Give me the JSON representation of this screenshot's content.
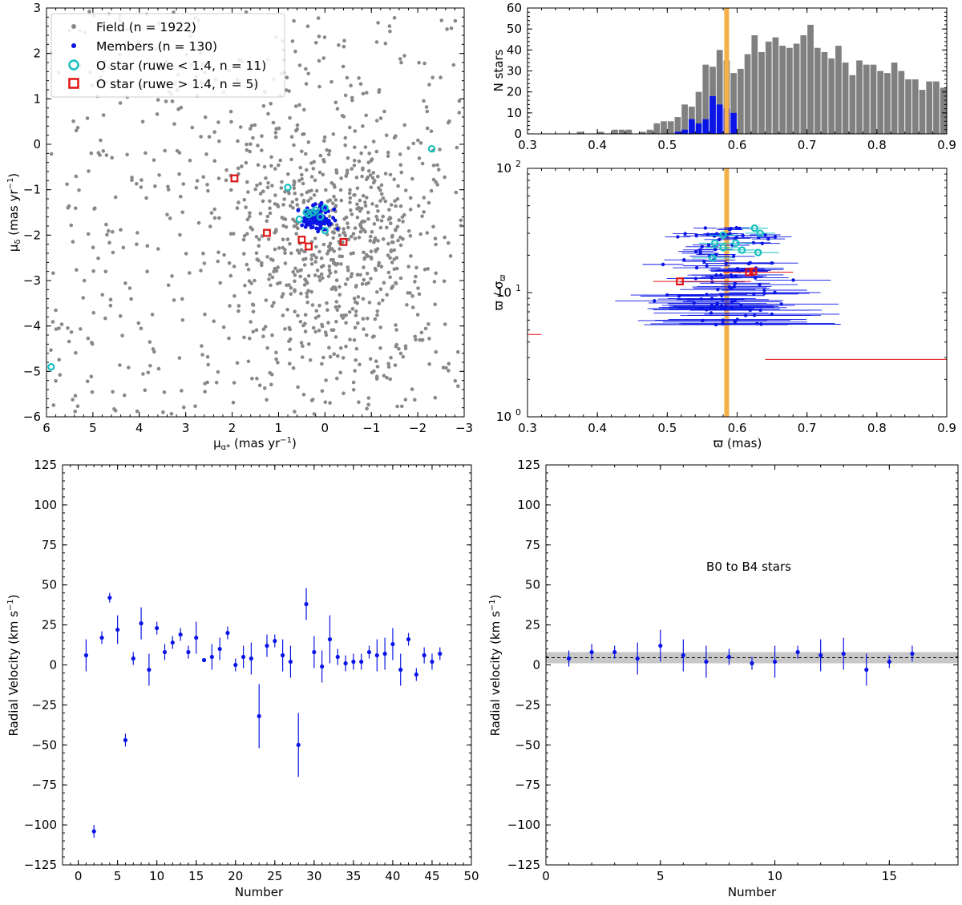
{
  "chart_data": [
    {
      "id": "pm",
      "type": "scatter",
      "xlabel_main": "μ",
      "xlabel_sub": "α*",
      "xlabel_rest": " (mas yr",
      "xlabel_exp": "−1",
      "xlabel_close": ")",
      "ylabel_main": "μ",
      "ylabel_sub": "δ",
      "ylabel_rest": " (mas yr",
      "ylabel_exp": "−1",
      "ylabel_close": ")",
      "xlim": [
        6,
        -3
      ],
      "ylim": [
        -6,
        3
      ],
      "xticks": [
        "6",
        "5",
        "4",
        "3",
        "2",
        "1",
        "0",
        "−1",
        "−2",
        "−3"
      ],
      "yticks": [
        "−6",
        "−5",
        "−4",
        "−3",
        "−2",
        "−1",
        "0",
        "1",
        "2",
        "3"
      ],
      "legend": [
        "Field (n = 1922)",
        "Members (n = 130)",
        "O star (ruwe < 1.4, n = 11)",
        "O star (ruwe > 1.4, n = 5)"
      ],
      "legend_position": "top-left",
      "o_good": [
        [
          -2.3,
          -0.1
        ],
        [
          0.8,
          -0.95
        ],
        [
          5.9,
          -4.9
        ],
        [
          0.55,
          -1.65
        ],
        [
          0.35,
          -1.55
        ],
        [
          0.25,
          -1.5
        ],
        [
          0.1,
          -1.6
        ],
        [
          0.0,
          -1.4
        ],
        [
          0.2,
          -1.45
        ],
        [
          0.0,
          -1.9
        ],
        [
          0.4,
          -1.5
        ]
      ],
      "o_bad": [
        [
          1.95,
          -0.75
        ],
        [
          1.25,
          -1.95
        ],
        [
          0.5,
          -2.1
        ],
        [
          0.35,
          -2.25
        ],
        [
          -0.4,
          -2.15
        ]
      ],
      "colors": {
        "field": "#888888",
        "members": "#0a14e6",
        "o_good": "#17bfbf",
        "o_bad": "#e01414"
      }
    },
    {
      "id": "hist",
      "type": "bar",
      "ylabel": "N stars",
      "xlim": [
        0.3,
        0.9
      ],
      "ylim": [
        0,
        60
      ],
      "xticks": [
        "0.3",
        "0.4",
        "0.5",
        "0.6",
        "0.7",
        "0.8",
        "0.9"
      ],
      "yticks": [
        "0",
        "10",
        "20",
        "30",
        "40",
        "50",
        "60"
      ],
      "bin_start": 0.3,
      "bin_width": 0.01,
      "field_counts": [
        0,
        0,
        0,
        0,
        0,
        0,
        0,
        1,
        0,
        0,
        1,
        0,
        2,
        2,
        2,
        0,
        1,
        2,
        5,
        6,
        6,
        8,
        14,
        13,
        20,
        33,
        32,
        40,
        35,
        29,
        31,
        38,
        47,
        39,
        44,
        46,
        42,
        41,
        43,
        47,
        52,
        41,
        39,
        36,
        42,
        34,
        28,
        35,
        33,
        33,
        30,
        29,
        34,
        30,
        26,
        26,
        21,
        25,
        25,
        22
      ],
      "member_counts": [
        0,
        0,
        0,
        0,
        0,
        0,
        0,
        0,
        0,
        0,
        0,
        0,
        0,
        0,
        0,
        0,
        0,
        0,
        0,
        0,
        0,
        1,
        2,
        7,
        5,
        7,
        18,
        14,
        12,
        10,
        0,
        0,
        0,
        0,
        0,
        0,
        0,
        0,
        0,
        0,
        0,
        0,
        0,
        0,
        0,
        0,
        0,
        0,
        0,
        0,
        0,
        0,
        0,
        0,
        0,
        0,
        0,
        0,
        0,
        0
      ],
      "vline": 0.585,
      "colors": {
        "field": "#808080",
        "members": "#0a14e6",
        "vline": "#f5b04a"
      }
    },
    {
      "id": "plxsnr",
      "type": "scatter",
      "xlabel": "ϖ (mas)",
      "ylabel": "ϖ / σ",
      "ylabel_sub": "ϖ",
      "xlim": [
        0.3,
        0.9
      ],
      "ylim": [
        1,
        100
      ],
      "yscale": "log",
      "xticks": [
        "0.3",
        "0.4",
        "0.5",
        "0.6",
        "0.7",
        "0.8",
        "0.9"
      ],
      "yticks_major": [
        "10^0",
        "10^1",
        "10^2"
      ],
      "vline": 0.585,
      "o_good": [
        [
          0.625,
          33
        ],
        [
          0.633,
          30
        ],
        [
          0.58,
          29
        ],
        [
          0.568,
          25
        ],
        [
          0.598,
          25
        ],
        [
          0.607,
          22
        ],
        [
          0.63,
          21
        ],
        [
          0.565,
          19
        ],
        [
          0.58,
          23
        ]
      ],
      "o_bad": [
        [
          0.518,
          12.3
        ],
        [
          0.617,
          14.6
        ],
        [
          0.623,
          14.8
        ]
      ],
      "red_bars": [
        [
          0.3,
          0.32,
          4.6
        ],
        [
          0.64,
          0.9,
          2.9
        ],
        [
          0.48,
          0.62,
          12.3
        ],
        [
          0.58,
          0.68,
          14.6
        ]
      ],
      "colors": {
        "members": "#0a14e6",
        "o_good": "#17bfbf",
        "o_bad": "#e01414",
        "vline": "#f5b04a"
      }
    },
    {
      "id": "rv",
      "type": "scatter",
      "xlabel": "Number",
      "ylabel_main": "Radial Velocity (km s",
      "ylabel_exp": "−1",
      "ylabel_close": ")",
      "xlim": [
        -2,
        50
      ],
      "ylim": [
        -125,
        125
      ],
      "xticks": [
        "0",
        "5",
        "10",
        "15",
        "20",
        "25",
        "30",
        "35",
        "40",
        "45",
        "50"
      ],
      "yticks": [
        "−125",
        "−100",
        "−75",
        "−50",
        "−25",
        "0",
        "25",
        "50",
        "75",
        "100",
        "125"
      ],
      "x": [
        1,
        2,
        3,
        4,
        5,
        6,
        7,
        8,
        9,
        10,
        11,
        12,
        13,
        14,
        15,
        16,
        17,
        18,
        19,
        20,
        21,
        22,
        23,
        24,
        25,
        26,
        27,
        28,
        29,
        30,
        31,
        32,
        33,
        34,
        35,
        36,
        37,
        38,
        39,
        40,
        41,
        42,
        43,
        44,
        45,
        46
      ],
      "y": [
        6,
        -104,
        17,
        42,
        22,
        -47,
        4,
        26,
        -3,
        23,
        8,
        14,
        19,
        8,
        17,
        3,
        5,
        10,
        20,
        0,
        5,
        4,
        -32,
        12,
        15,
        6,
        2,
        -50,
        38,
        8,
        -1,
        16,
        5,
        1,
        2,
        2,
        8,
        6,
        7,
        13,
        -3,
        16,
        -6,
        6,
        2,
        7
      ],
      "err": [
        10,
        4,
        4,
        3,
        9,
        4,
        4,
        10,
        10,
        4,
        5,
        4,
        4,
        4,
        10,
        0,
        8,
        7,
        4,
        4,
        7,
        10,
        20,
        7,
        4,
        10,
        10,
        20,
        10,
        10,
        10,
        15,
        5,
        5,
        5,
        5,
        4,
        10,
        10,
        10,
        10,
        4,
        4,
        5,
        5,
        4
      ],
      "color": "#0a14e6"
    },
    {
      "id": "rvb",
      "type": "scatter",
      "xlabel": "Number",
      "ylabel_main": "Radial velocity (km s",
      "ylabel_exp": "−1",
      "ylabel_close": ")",
      "annotation": "B0 to B4 stars",
      "xlim": [
        0,
        18
      ],
      "ylim": [
        -125,
        125
      ],
      "xticks": [
        "0",
        "5",
        "10",
        "15"
      ],
      "yticks": [
        "−125",
        "−100",
        "−75",
        "−50",
        "−25",
        "0",
        "25",
        "50",
        "75",
        "100",
        "125"
      ],
      "x": [
        1,
        2,
        3,
        4,
        5,
        6,
        7,
        8,
        9,
        10,
        11,
        12,
        13,
        14,
        15,
        16
      ],
      "y": [
        4,
        8,
        8,
        4,
        12,
        6,
        2,
        5,
        1,
        2,
        8,
        6,
        7,
        -3,
        2,
        7
      ],
      "err": [
        5,
        5,
        4,
        10,
        10,
        10,
        10,
        5,
        4,
        10,
        4,
        10,
        10,
        10,
        4,
        5
      ],
      "mean": 4.5,
      "band": [
        1,
        8
      ],
      "color": "#0a14e6"
    }
  ]
}
